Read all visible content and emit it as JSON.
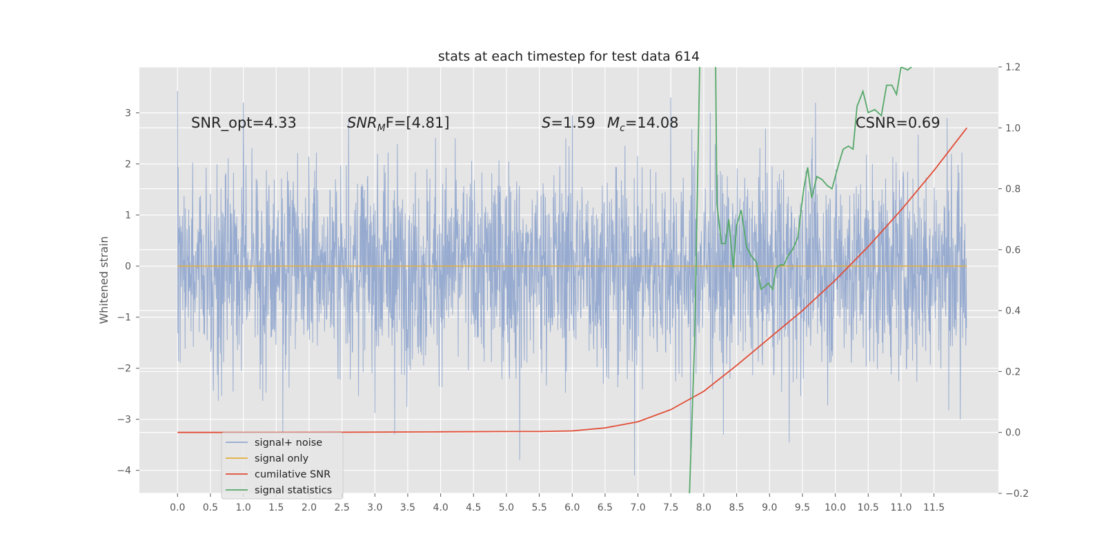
{
  "chart_data": {
    "type": "line",
    "title": "stats at each timestep for test data 614",
    "xlabel": "",
    "ylabel": "Whitened strain",
    "xlim": [
      -0.58,
      12.48
    ],
    "ylim": [
      -4.45,
      3.9
    ],
    "y2lim": [
      -0.2,
      1.2
    ],
    "x_ticks": [
      "0.0",
      "0.5",
      "1.0",
      "1.5",
      "2.0",
      "2.5",
      "3.0",
      "3.5",
      "4.0",
      "4.5",
      "5.0",
      "5.5",
      "6.0",
      "6.5",
      "7.0",
      "7.5",
      "8.0",
      "8.5",
      "9.0",
      "9.5",
      "10.0",
      "10.5",
      "11.0",
      "11.5"
    ],
    "y_ticks": [
      "−4",
      "−3",
      "−2",
      "−1",
      "0",
      "1",
      "2",
      "3"
    ],
    "y2_ticks": [
      "−0.2",
      "0.0",
      "0.2",
      "0.4",
      "0.6",
      "0.8",
      "1.0",
      "1.2"
    ],
    "grid": true,
    "legend_position": "lower-left",
    "series": [
      {
        "name": "signal+ noise",
        "axis": "left",
        "color": "#92a8cf",
        "x_range": [
          0,
          12
        ],
        "description_envelope_typical": [
          -1.8,
          1.8
        ],
        "extremes": [
          {
            "x": 0.0,
            "y": 3.43
          },
          {
            "x": 1.0,
            "y": 3.2
          },
          {
            "x": 1.6,
            "y": -3.3
          },
          {
            "x": 2.6,
            "y": 2.9
          },
          {
            "x": 3.3,
            "y": -3.3
          },
          {
            "x": 5.2,
            "y": -3.8
          },
          {
            "x": 6.0,
            "y": 2.95
          },
          {
            "x": 6.95,
            "y": -4.1
          },
          {
            "x": 7.5,
            "y": 3.3
          },
          {
            "x": 7.8,
            "y": -3.6
          },
          {
            "x": 8.1,
            "y": 3.0
          },
          {
            "x": 8.3,
            "y": -3.3
          },
          {
            "x": 9.3,
            "y": -3.45
          },
          {
            "x": 9.7,
            "y": 3.2
          },
          {
            "x": 11.7,
            "y": 2.9
          },
          {
            "x": 11.9,
            "y": -3.0
          }
        ]
      },
      {
        "name": "signal only",
        "axis": "left",
        "color": "#e5ae38",
        "points": [
          [
            0,
            0
          ],
          [
            12,
            0
          ]
        ]
      },
      {
        "name": "cumilative SNR",
        "axis": "right",
        "color": "#e24a33",
        "points": [
          [
            0,
            0
          ],
          [
            1,
            0
          ],
          [
            2,
            0.0005
          ],
          [
            3,
            0.001
          ],
          [
            4,
            0.002
          ],
          [
            5,
            0.003
          ],
          [
            5.5,
            0.003
          ],
          [
            6.0,
            0.005
          ],
          [
            6.5,
            0.015
          ],
          [
            7.0,
            0.035
          ],
          [
            7.5,
            0.075
          ],
          [
            8.0,
            0.135
          ],
          [
            8.5,
            0.22
          ],
          [
            9.0,
            0.31
          ],
          [
            9.5,
            0.4
          ],
          [
            10.0,
            0.5
          ],
          [
            10.5,
            0.61
          ],
          [
            11.0,
            0.73
          ],
          [
            11.5,
            0.86
          ],
          [
            12.0,
            1.0
          ]
        ]
      },
      {
        "name": "signal statistics",
        "axis": "right",
        "color": "#55a868",
        "points": [
          [
            7.78,
            -0.22
          ],
          [
            7.86,
            0.29
          ],
          [
            7.94,
            1.22
          ],
          [
            8.18,
            1.22
          ],
          [
            8.2,
            0.75
          ],
          [
            8.27,
            0.62
          ],
          [
            8.33,
            0.62
          ],
          [
            8.38,
            0.7
          ],
          [
            8.45,
            0.54
          ],
          [
            8.5,
            0.68
          ],
          [
            8.57,
            0.73
          ],
          [
            8.65,
            0.61
          ],
          [
            8.72,
            0.58
          ],
          [
            8.8,
            0.56
          ],
          [
            8.87,
            0.47
          ],
          [
            8.93,
            0.48
          ],
          [
            8.98,
            0.49
          ],
          [
            9.05,
            0.47
          ],
          [
            9.1,
            0.54
          ],
          [
            9.16,
            0.55
          ],
          [
            9.22,
            0.55
          ],
          [
            9.28,
            0.58
          ],
          [
            9.35,
            0.6
          ],
          [
            9.43,
            0.64
          ],
          [
            9.52,
            0.8
          ],
          [
            9.58,
            0.87
          ],
          [
            9.64,
            0.77
          ],
          [
            9.72,
            0.84
          ],
          [
            9.8,
            0.83
          ],
          [
            9.88,
            0.81
          ],
          [
            9.95,
            0.8
          ],
          [
            10.05,
            0.88
          ],
          [
            10.12,
            0.93
          ],
          [
            10.2,
            0.94
          ],
          [
            10.27,
            0.93
          ],
          [
            10.33,
            1.07
          ],
          [
            10.42,
            1.12
          ],
          [
            10.5,
            1.05
          ],
          [
            10.6,
            1.06
          ],
          [
            10.7,
            1.04
          ],
          [
            10.78,
            1.14
          ],
          [
            10.86,
            1.14
          ],
          [
            10.93,
            1.11
          ],
          [
            11.0,
            1.2
          ],
          [
            11.1,
            1.19
          ],
          [
            11.16,
            1.2
          ]
        ]
      }
    ],
    "annotations": [
      {
        "id": "snr_opt",
        "text": "SNR_opt=4.33"
      },
      {
        "id": "snr_mf_prefix",
        "text": "SNR"
      },
      {
        "id": "snr_mf_sub",
        "text": "M"
      },
      {
        "id": "snr_mf_suffix",
        "text": "F=[4.81]"
      },
      {
        "id": "s_prefix",
        "text": "S"
      },
      {
        "id": "s_suffix",
        "text": "=1.59"
      },
      {
        "id": "mc_prefix",
        "text": "M"
      },
      {
        "id": "mc_sub",
        "text": "c"
      },
      {
        "id": "mc_suffix",
        "text": "=14.08"
      },
      {
        "id": "csnr",
        "text": "CSNR=0.69"
      }
    ]
  }
}
